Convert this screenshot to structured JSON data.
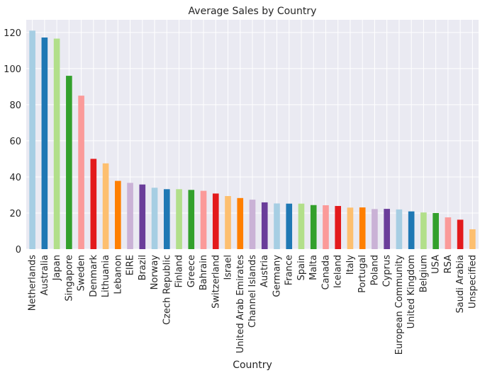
{
  "chart_data": {
    "type": "bar",
    "title": "Average Sales by Country",
    "xlabel": "Country",
    "ylabel": "",
    "ylim": [
      0,
      127
    ],
    "yticks": [
      0,
      20,
      40,
      60,
      80,
      100,
      120
    ],
    "grid": true,
    "legend": "none",
    "categories": [
      "Netherlands",
      "Australia",
      "Japan",
      "Singapore",
      "Sweden",
      "Denmark",
      "Lithuania",
      "Lebanon",
      "EIRE",
      "Brazil",
      "Norway",
      "Czech Republic",
      "Finland",
      "Greece",
      "Bahrain",
      "Switzerland",
      "Israel",
      "United Arab Emirates",
      "Channel Islands",
      "Austria",
      "Germany",
      "France",
      "Spain",
      "Malta",
      "Canada",
      "Iceland",
      "Italy",
      "Portugal",
      "Poland",
      "Cyprus",
      "European Community",
      "United Kingdom",
      "Belgium",
      "USA",
      "RSA",
      "Saudi Arabia",
      "Unspecified"
    ],
    "values": [
      121.0,
      117.2,
      116.6,
      96.0,
      85.0,
      50.0,
      47.5,
      37.8,
      36.7,
      35.8,
      34.0,
      33.2,
      33.2,
      32.8,
      32.3,
      30.8,
      29.4,
      28.3,
      27.4,
      25.9,
      25.3,
      25.2,
      25.2,
      24.4,
      24.3,
      23.9,
      23.0,
      23.1,
      22.2,
      22.3,
      22.0,
      20.9,
      20.3,
      20.0,
      17.6,
      16.3,
      11.0
    ],
    "bar_colors": [
      "#a6cee3",
      "#1f78b4",
      "#b2df8a",
      "#33a02c",
      "#fb9a99",
      "#e31a1c",
      "#fdbf6f",
      "#ff7f00",
      "#cab2d6",
      "#6a3d9a"
    ],
    "background_color": "#eaeaf2",
    "grid_color": "#ffffff"
  }
}
